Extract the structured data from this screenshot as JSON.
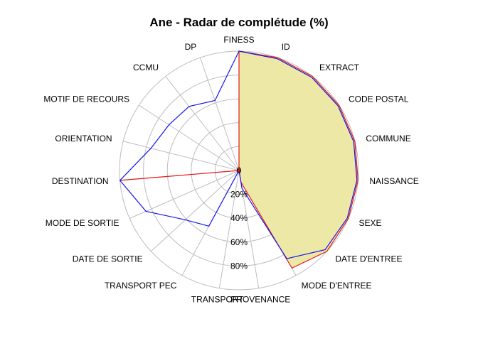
{
  "chart_data": {
    "type": "radar",
    "title": "Ane - Radar de complétude (%)",
    "rlim": [
      0,
      100
    ],
    "grid": true,
    "categories": [
      "FINESS",
      "ID",
      "EXTRACT",
      "CODE POSTAL",
      "COMMUNE",
      "NAISSANCE",
      "SEXE",
      "DATE D'ENTREE",
      "MODE D'ENTREE",
      "PROVENANCE",
      "TRANSPORT",
      "TRANSPORT PEC",
      "DATE DE SORTIE",
      "MODE DE SORTIE",
      "DESTINATION",
      "ORIENTATION",
      "MOTIF DE RECOURS",
      "CCMU",
      "DP"
    ],
    "radial_ticks": [
      {
        "value": 0,
        "label": "0"
      },
      {
        "value": 20,
        "label": "20%"
      },
      {
        "value": 40,
        "label": "40%"
      },
      {
        "value": 60,
        "label": "60%"
      },
      {
        "value": 80,
        "label": "80%"
      }
    ],
    "series": [
      {
        "values": [
          100,
          100,
          100,
          100,
          100,
          100,
          100,
          100,
          93,
          10,
          0,
          0,
          0,
          0,
          100,
          0,
          0,
          0,
          0
        ],
        "line_color": "#e41a1c",
        "fill_color": "#eee8a6"
      },
      {
        "values": [
          100,
          99,
          99,
          99,
          99,
          99,
          99,
          98,
          84,
          15,
          0,
          53,
          61,
          85,
          100,
          76,
          70,
          68,
          62
        ],
        "line_color": "#1515ee"
      }
    ]
  }
}
